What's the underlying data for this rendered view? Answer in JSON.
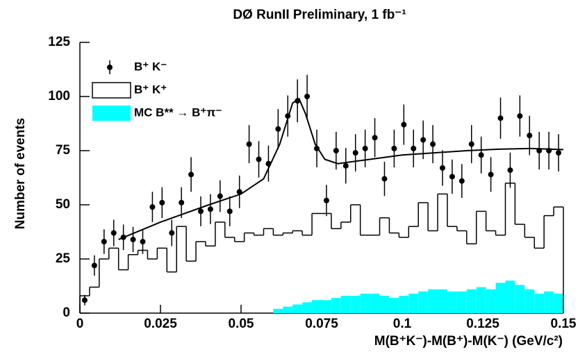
{
  "chart_data": {
    "type": "histogram",
    "title": "DØ RunII  Preliminary,  1 fb⁻¹",
    "x_label": "M(B⁺K⁻)-M(B⁺)-M(K⁻) (GeV/c²)",
    "y_label": "Number of events",
    "xlim": [
      0,
      0.15
    ],
    "ylim": [
      0,
      125
    ],
    "xticks": [
      0,
      0.025,
      0.05,
      0.075,
      0.1,
      0.125,
      0.15
    ],
    "yticks": [
      0,
      25,
      50,
      75,
      100,
      125
    ],
    "legend": "upper left",
    "series": [
      {
        "name": "B⁺ K⁻",
        "style": "points",
        "color": "#000000",
        "x": [
          0.0015,
          0.0045,
          0.0075,
          0.0105,
          0.0135,
          0.0165,
          0.0195,
          0.0225,
          0.0255,
          0.0285,
          0.0315,
          0.0345,
          0.0375,
          0.0405,
          0.0435,
          0.0465,
          0.0495,
          0.0525,
          0.0555,
          0.0585,
          0.0615,
          0.0645,
          0.0675,
          0.0705,
          0.0735,
          0.0765,
          0.0795,
          0.0825,
          0.0855,
          0.0885,
          0.0915,
          0.0945,
          0.0975,
          0.1005,
          0.1035,
          0.1065,
          0.1095,
          0.1125,
          0.1155,
          0.1185,
          0.1215,
          0.1245,
          0.1275,
          0.1305,
          0.1335,
          0.1365,
          0.1395,
          0.1425,
          0.1455,
          0.1485
        ],
        "values": [
          6,
          22,
          33,
          37,
          35,
          34,
          33,
          49,
          51,
          37,
          51,
          64,
          47,
          48,
          54,
          47,
          56,
          78,
          71,
          69,
          85,
          91,
          98,
          100,
          76,
          52,
          75,
          68,
          74,
          76,
          81,
          62,
          76,
          87,
          76,
          80,
          78,
          67,
          63,
          61,
          78,
          73,
          64,
          90,
          66,
          91,
          82,
          75,
          75,
          74
        ],
        "errors": [
          2.4,
          4.7,
          5.7,
          6.1,
          5.9,
          5.8,
          5.7,
          7,
          7.1,
          6.1,
          7.1,
          8,
          6.9,
          6.9,
          7.3,
          6.9,
          7.5,
          8.8,
          8.4,
          8.3,
          9.2,
          9.5,
          9.9,
          10,
          8.7,
          7.2,
          8.7,
          8.2,
          8.6,
          8.7,
          9,
          7.9,
          8.7,
          9.3,
          8.7,
          8.9,
          8.8,
          8.2,
          7.9,
          7.8,
          8.8,
          8.5,
          8,
          9.5,
          8.1,
          9.5,
          9.1,
          8.7,
          8.7,
          8.6
        ]
      },
      {
        "name": "B⁺ K⁺",
        "style": "step",
        "color": "#000000",
        "bins": [
          0,
          0.003,
          0.006,
          0.009,
          0.012,
          0.015,
          0.018,
          0.021,
          0.024,
          0.027,
          0.03,
          0.033,
          0.036,
          0.039,
          0.042,
          0.045,
          0.048,
          0.051,
          0.054,
          0.057,
          0.06,
          0.063,
          0.066,
          0.069,
          0.072,
          0.075,
          0.078,
          0.081,
          0.084,
          0.087,
          0.09,
          0.093,
          0.096,
          0.099,
          0.102,
          0.105,
          0.108,
          0.111,
          0.114,
          0.117,
          0.12,
          0.123,
          0.126,
          0.129,
          0.132,
          0.135,
          0.138,
          0.141,
          0.144,
          0.147,
          0.15
        ],
        "values": [
          8,
          12,
          25,
          30,
          20,
          27,
          29,
          25,
          30,
          19,
          40,
          24,
          33,
          31,
          42,
          35,
          33,
          37,
          36,
          39,
          36,
          37,
          38,
          36,
          46,
          46,
          39,
          42,
          50,
          36,
          36,
          44,
          37,
          35,
          40,
          51,
          38,
          55,
          40,
          38,
          32,
          47,
          38,
          36,
          60,
          41,
          35,
          30,
          45,
          49
        ]
      },
      {
        "name": "MC B** → B⁺π⁻",
        "style": "filled",
        "color": "#00ffff",
        "bins": [
          0,
          0.003,
          0.006,
          0.009,
          0.012,
          0.015,
          0.018,
          0.021,
          0.024,
          0.027,
          0.03,
          0.033,
          0.036,
          0.039,
          0.042,
          0.045,
          0.048,
          0.051,
          0.054,
          0.057,
          0.06,
          0.063,
          0.066,
          0.069,
          0.072,
          0.075,
          0.078,
          0.081,
          0.084,
          0.087,
          0.09,
          0.093,
          0.096,
          0.099,
          0.102,
          0.105,
          0.108,
          0.111,
          0.114,
          0.117,
          0.12,
          0.123,
          0.126,
          0.129,
          0.132,
          0.135,
          0.138,
          0.141,
          0.144,
          0.147,
          0.15
        ],
        "values": [
          0,
          0,
          0,
          0,
          0,
          0,
          0,
          0,
          0,
          0,
          0,
          0,
          0,
          0,
          0,
          0,
          0,
          0,
          0,
          0,
          2,
          3,
          4,
          5,
          6,
          6,
          7,
          8,
          8,
          9,
          9,
          8,
          7,
          8,
          9,
          10,
          11,
          11,
          10,
          10,
          11,
          12,
          11,
          14,
          15,
          13,
          11,
          9,
          10,
          9
        ]
      },
      {
        "style": "line",
        "color": "#000000",
        "x": [
          0.012,
          0.025,
          0.04,
          0.05,
          0.057,
          0.062,
          0.066,
          0.068,
          0.07,
          0.073,
          0.076,
          0.08,
          0.09,
          0.1,
          0.11,
          0.12,
          0.13,
          0.14,
          0.15
        ],
        "values": [
          34,
          42,
          50,
          55,
          62,
          78,
          97,
          99,
          92,
          78,
          71,
          69,
          71,
          73,
          74,
          75,
          75.7,
          76,
          75.5
        ]
      }
    ]
  }
}
